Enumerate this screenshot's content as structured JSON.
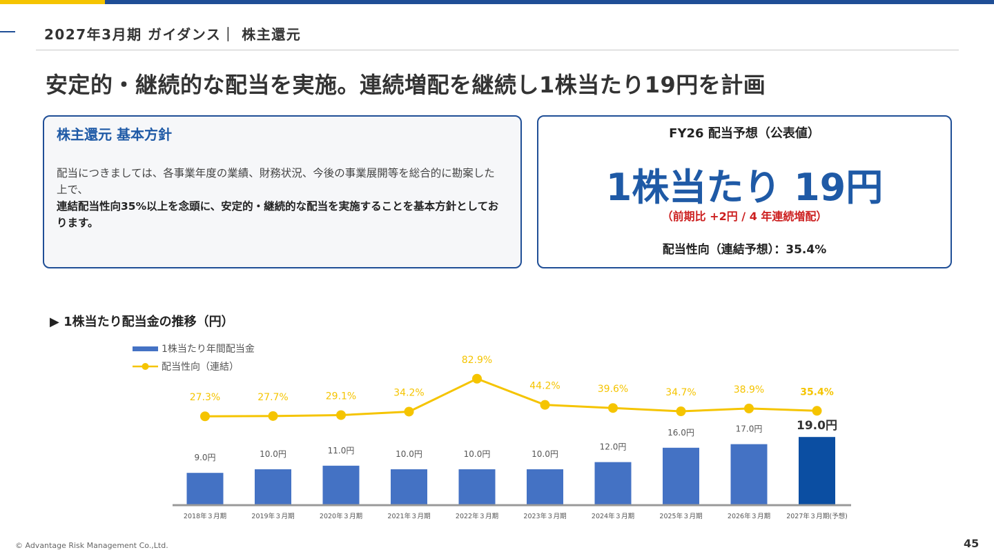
{
  "header": {
    "section_title": "2027年3月期 ガイダンス｜ 株主還元",
    "headline": "安定的・継続的な配当を実施。連続増配を継続し1株当たり19円を計画"
  },
  "policy_box": {
    "title": "株主還元 基本方針",
    "body_plain": "配当につきましては、各事業年度の業績、財務状況、今後の事業展開等を総合的に勘案した上で、",
    "body_bold": "連結配当性向35%以上を念頭に、安定的・継続的な配当を実施することを基本方針としております。"
  },
  "forecast_box": {
    "title": "FY26 配当予想（公表値）",
    "big_value": "1株当たり 19円",
    "sub_note": "（前期比 +2円 / 4 年連続増配）",
    "payout_ratio": "配当性向（連結予想）：35.4%"
  },
  "chart_section_title": "▶ 1株当たり配当金の推移（円）",
  "colors": {
    "brand_blue": "#1f4e96",
    "bar_blue": "#4472c4",
    "bar_highlight": "#0b4ea2",
    "line_yellow": "#f5c400",
    "accent_red": "#cc1f1f"
  },
  "chart_data": {
    "type": "bar",
    "categories": [
      "2018年３月期",
      "2019年３月期",
      "2020年３月期",
      "2021年３月期",
      "2022年３月期",
      "2023年３月期",
      "2024年３月期",
      "2025年３月期",
      "2026年３月期",
      "2027年３月期(予想)"
    ],
    "series": [
      {
        "name": "1株当たり年間配当金",
        "type": "bar",
        "values": [
          9.0,
          10.0,
          11.0,
          10.0,
          10.0,
          10.0,
          12.0,
          16.0,
          17.0,
          19.0
        ],
        "labels": [
          "9.0円",
          "10.0円",
          "11.0円",
          "10.0円",
          "10.0円",
          "10.0円",
          "12.0円",
          "16.0円",
          "17.0円",
          "19.0円"
        ]
      },
      {
        "name": "配当性向（連結）",
        "type": "line",
        "values": [
          27.3,
          27.7,
          29.1,
          34.2,
          82.9,
          44.2,
          39.6,
          34.7,
          38.9,
          35.4
        ],
        "labels": [
          "27.3%",
          "27.7%",
          "29.1%",
          "34.2%",
          "82.9%",
          "44.2%",
          "39.6%",
          "34.7%",
          "38.9%",
          "35.4%"
        ]
      }
    ],
    "highlight_last": true,
    "legend_position": "top-left",
    "grid": false
  },
  "footer": {
    "copyright": "© Advantage Risk Management Co.,Ltd.",
    "page_number": "45"
  }
}
